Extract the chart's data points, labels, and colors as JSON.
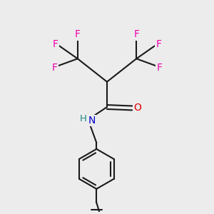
{
  "bg_color": "#ececec",
  "bond_color": "#1a1a1a",
  "F_color": "#ee00aa",
  "N_color": "#0000cc",
  "O_color": "#dd0000",
  "H_color": "#228888",
  "C_color": "#1a1a1a",
  "line_width": 1.5,
  "figsize": [
    3.0,
    3.0
  ],
  "dpi": 100,
  "xlim": [
    0,
    10
  ],
  "ylim": [
    0,
    10
  ]
}
